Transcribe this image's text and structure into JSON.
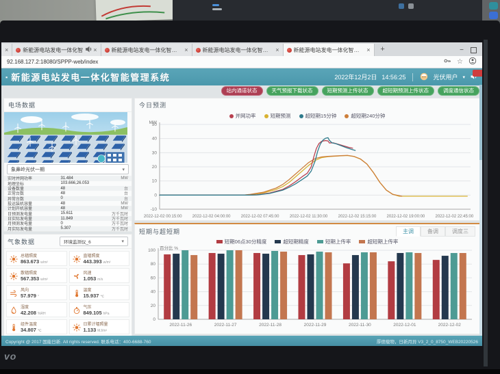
{
  "window": {
    "tabs": [
      {
        "title": "新能源电站发电一体化智",
        "clipped": true,
        "audio": false
      },
      {
        "title": "新能源电站发电一体化智",
        "clipped": false,
        "audio": true
      },
      {
        "title": "新能源电站发电一体化智能管",
        "clipped": false,
        "audio": false
      },
      {
        "title": "新能源电站发电一体化智能管",
        "clipped": false,
        "audio": false
      },
      {
        "title": "新能源电站发电一体化智能管",
        "clipped": false,
        "audio": false
      }
    ],
    "new_tab_label": "+",
    "minimize_label": "−",
    "url": "92.168.127.2:18080/SPPP-web/index"
  },
  "header": {
    "bullet": "▪",
    "title": "新能源电站发电一体化智能管理系统",
    "date": "2022年12月2日",
    "time": "14:56:25",
    "user": "光伏用户",
    "user_caret": "▾"
  },
  "status_badges": [
    {
      "label": "站内通道状态",
      "color": "#ad3e53"
    },
    {
      "label": "天气预报下载状态",
      "color": "#46a35e"
    },
    {
      "label": "短期预测上传状态",
      "color": "#46a35e"
    },
    {
      "label": "超短期预测上传状态",
      "color": "#46a35e"
    },
    {
      "label": "调度通信状态",
      "color": "#46a35e"
    }
  ],
  "farm": {
    "title": "电场数据",
    "station": "象鼻岭光伏一期",
    "rows": [
      {
        "label": "实时并网功率",
        "value": "31.484",
        "unit": "MW"
      },
      {
        "label": "地理坐标",
        "value": "103.666,26.053",
        "unit": ""
      },
      {
        "label": "设备数量",
        "value": "48",
        "unit": "台"
      },
      {
        "label": "正常台数",
        "value": "48",
        "unit": "台"
      },
      {
        "label": "异常台数",
        "value": "0",
        "unit": "台"
      },
      {
        "label": "投运装机容量",
        "value": "48",
        "unit": "MW"
      },
      {
        "label": "计划开机容量",
        "value": "48",
        "unit": "MW"
      },
      {
        "label": "日预测发电量",
        "value": "15.611",
        "unit": "万千瓦时"
      },
      {
        "label": "日实际发电量",
        "value": "11.849",
        "unit": "万千瓦时"
      },
      {
        "label": "月预测发电量",
        "value": "0",
        "unit": "万千瓦时"
      },
      {
        "label": "月实际发电量",
        "value": "5.307",
        "unit": "万千瓦时"
      }
    ]
  },
  "weather": {
    "title": "气象数据",
    "sensor": "环境监测仪_6",
    "cards": [
      {
        "icon": "sun-icon",
        "label": "总辐照度",
        "value": "863.673",
        "unit": "w/m²"
      },
      {
        "icon": "sun-icon",
        "label": "直辐照度",
        "value": "443.393",
        "unit": "w/m²"
      },
      {
        "icon": "sun-icon",
        "label": "散辐照度",
        "value": "567.353",
        "unit": "w/m²"
      },
      {
        "icon": "fan-icon",
        "label": "风速",
        "value": "1.053",
        "unit": "m/s"
      },
      {
        "icon": "wind-direction-icon",
        "label": "风向",
        "value": "57.979",
        "unit": "°"
      },
      {
        "icon": "thermometer-icon",
        "label": "温度",
        "value": "15.937",
        "unit": "℃"
      },
      {
        "icon": "droplet-icon",
        "label": "湿度",
        "value": "42.208",
        "unit": "%RH"
      },
      {
        "icon": "gauge-icon",
        "label": "气压",
        "value": "849.105",
        "unit": "hPa"
      },
      {
        "icon": "thermometer-icon",
        "label": "组件温度",
        "value": "34.807",
        "unit": "℃"
      },
      {
        "icon": "sun-icon",
        "label": "日累计辐照量",
        "value": "1.133",
        "unit": "MJ/m²"
      }
    ]
  },
  "forecast": {
    "title": "今日预测"
  },
  "accuracy": {
    "title": "短期与超短期",
    "tabs": [
      {
        "label": "主调",
        "active": true
      },
      {
        "label": "备调",
        "active": false
      },
      {
        "label": "调度三",
        "active": false
      }
    ]
  },
  "footer": {
    "left": "Copyright @ 2017 国能日新. All rights reserved. 联系电话：400-6688-760",
    "right": "厚德载物，日新月异   V3_2_0_8750_WEB20220526"
  },
  "bezel": {
    "brand": "vo"
  },
  "chart_data": [
    {
      "id": "forecast",
      "type": "line",
      "title": "今日预测",
      "xlabel": "",
      "ylabel": "MW",
      "ylim": [
        -10,
        50
      ],
      "yticks": [
        -10,
        0,
        10,
        20,
        30,
        40,
        50
      ],
      "xlim": [
        0,
        24
      ],
      "grid": true,
      "legend_position": "top",
      "draw_order": [
        1,
        3,
        0,
        2
      ],
      "xticks": [
        {
          "pos": 0.25,
          "label": "2022-12-02 00:15:00"
        },
        {
          "pos": 4,
          "label": "2022-12-02 04:00:00"
        },
        {
          "pos": 7.75,
          "label": "2022-12-02 07:45:00"
        },
        {
          "pos": 11.5,
          "label": "2022-12-02 11:30:00"
        },
        {
          "pos": 15.25,
          "label": "2022-12-02 15:15:00"
        },
        {
          "pos": 19,
          "label": "2022-12-02 19:00:00"
        },
        {
          "pos": 22.75,
          "label": "2022-12-02 22:45:00"
        }
      ],
      "series": [
        {
          "name": "并网功率",
          "color": "#b84150",
          "points": [
            [
              0,
              0
            ],
            [
              7,
              0
            ],
            [
              7.5,
              0.2
            ],
            [
              8.5,
              1.5
            ],
            [
              9.5,
              4
            ],
            [
              10,
              6.5
            ],
            [
              10.5,
              9.5
            ],
            [
              11,
              13
            ],
            [
              11.4,
              15.5
            ],
            [
              11.7,
              20
            ],
            [
              11.9,
              27
            ],
            [
              12.1,
              33
            ],
            [
              12.3,
              36.5
            ],
            [
              12.5,
              38
            ],
            [
              12.8,
              38.6
            ],
            [
              13,
              38.3
            ],
            [
              13.1,
              36.9
            ],
            [
              13.4,
              37
            ],
            [
              13.7,
              36.2
            ],
            [
              14,
              35.4
            ],
            [
              14.3,
              34.6
            ],
            [
              14.6,
              33.8
            ],
            [
              14.9,
              33.2
            ]
          ]
        },
        {
          "name": "短期预测",
          "color": "#d9b232",
          "points": [
            [
              0,
              0
            ],
            [
              6.5,
              0
            ],
            [
              7,
              0.3
            ],
            [
              8,
              1.5
            ],
            [
              9,
              4
            ],
            [
              9.5,
              6
            ],
            [
              10,
              9
            ],
            [
              10.5,
              13
            ],
            [
              11,
              17
            ],
            [
              11.5,
              21
            ],
            [
              12,
              24.5
            ],
            [
              12.5,
              26.5
            ],
            [
              13,
              27.2
            ],
            [
              14,
              27.8
            ],
            [
              14.5,
              28
            ],
            [
              15,
              27.3
            ],
            [
              15.5,
              25.5
            ],
            [
              16,
              22
            ],
            [
              16.5,
              16
            ],
            [
              17,
              9
            ],
            [
              17.5,
              3.5
            ],
            [
              18,
              0.5
            ],
            [
              18.5,
              -0.8
            ],
            [
              23.75,
              -0.8
            ]
          ]
        },
        {
          "name": "超短期15分钟",
          "color": "#2f7b8c",
          "points": [
            [
              0,
              0
            ],
            [
              7,
              0
            ],
            [
              7.6,
              0.2
            ],
            [
              8.5,
              1.2
            ],
            [
              9.5,
              3.5
            ],
            [
              10,
              5.5
            ],
            [
              10.5,
              8
            ],
            [
              11,
              11
            ],
            [
              11.4,
              13.5
            ],
            [
              11.7,
              17
            ],
            [
              12,
              24
            ],
            [
              12.2,
              31
            ],
            [
              12.4,
              36
            ],
            [
              12.6,
              38.8
            ],
            [
              12.8,
              40.2
            ],
            [
              13,
              40.6
            ],
            [
              13.1,
              38.8
            ],
            [
              13.3,
              37
            ],
            [
              13.6,
              36.4
            ],
            [
              14,
              35
            ],
            [
              14.4,
              33.6
            ],
            [
              14.8,
              32.4
            ],
            [
              15.1,
              31.6
            ]
          ]
        },
        {
          "name": "超短期240分钟",
          "color": "#cd7f3a",
          "points": [
            [
              0,
              0
            ],
            [
              6.5,
              0
            ],
            [
              7,
              0.5
            ],
            [
              8,
              2
            ],
            [
              9,
              5
            ],
            [
              9.5,
              7.5
            ],
            [
              10,
              11
            ],
            [
              10.5,
              15
            ],
            [
              11,
              19
            ],
            [
              11.5,
              23
            ],
            [
              12,
              25.8
            ],
            [
              12.5,
              27
            ],
            [
              13,
              27.4
            ],
            [
              14,
              27.9
            ],
            [
              14.5,
              28.1
            ],
            [
              15,
              27.4
            ],
            [
              15.5,
              25.6
            ],
            [
              16,
              22
            ],
            [
              16.5,
              16
            ],
            [
              17,
              9
            ],
            [
              17.5,
              3.5
            ],
            [
              18,
              0.5
            ],
            [
              18.7,
              -0.8
            ]
          ]
        }
      ]
    },
    {
      "id": "accuracy",
      "type": "bar",
      "title": "短期与超短期",
      "xlabel": "",
      "ylabel": "百分比 %",
      "ylim": [
        0,
        100
      ],
      "yticks": [
        0,
        20,
        40,
        60,
        80,
        100
      ],
      "grid": true,
      "legend_position": "top",
      "categories": [
        "2022-11-26",
        "2022-11-27",
        "2022-11-28",
        "2022-11-29",
        "2022-11-30",
        "2022-12-01",
        "2022-12-02"
      ],
      "series": [
        {
          "name": "短期06点30分精度",
          "color": "#b23c42",
          "values": [
            94,
            96,
            96,
            93,
            81,
            84,
            86
          ]
        },
        {
          "name": "超短期精度",
          "color": "#24384e",
          "values": [
            95,
            95,
            95,
            94,
            93,
            96,
            92
          ]
        },
        {
          "name": "短期上传率",
          "color": "#4d9b94",
          "values": [
            100,
            100,
            99,
            98,
            97,
            97,
            96
          ]
        },
        {
          "name": "超短期上传率",
          "color": "#c3764f",
          "values": [
            93,
            100,
            98,
            97,
            97,
            96,
            96
          ]
        }
      ]
    }
  ]
}
